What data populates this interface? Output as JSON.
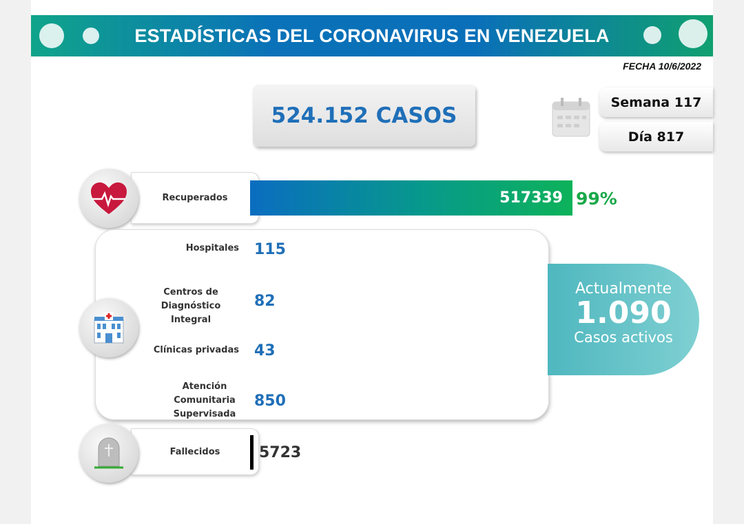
{
  "header": {
    "title": "ESTADÍSTICAS DEL CORONAVIRUS EN VENEZUELA",
    "fecha": "FECHA 10/6/2022"
  },
  "casos": "524.152 CASOS",
  "semana": "Semana 117",
  "dia": "Día 817",
  "recuperados": {
    "label": "Recuperados",
    "value": "517339",
    "percent": "99%",
    "fraction": 0.99
  },
  "activos": [
    {
      "label": "Hospitales",
      "value": "115"
    },
    {
      "label": "Centros de Diagnóstico Integral",
      "value": "82"
    },
    {
      "label": "Clínicas privadas",
      "value": "43"
    },
    {
      "label": "Atención Comunitaria Supervisada",
      "value": "850"
    }
  ],
  "actualmente": {
    "line1": "Actualmente",
    "value": "1.090",
    "line3": "Casos activos"
  },
  "fallecidos": {
    "label": "Fallecidos",
    "value": "5723"
  },
  "colors": {
    "accent_blue": "#1f6fb8",
    "green": "#1aa84a",
    "teal": "#4fb7bf"
  },
  "icons": [
    "virus-icon",
    "calendar-icon",
    "heart-pulse-icon",
    "hospital-icon",
    "tombstone-icon"
  ]
}
